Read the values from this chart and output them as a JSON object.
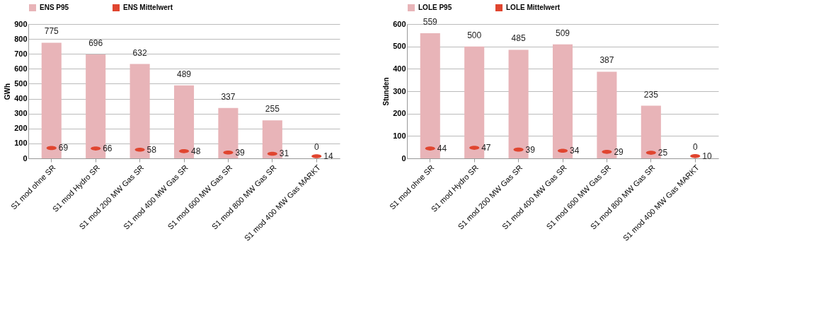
{
  "chart_data": [
    {
      "type": "bar",
      "categories": [
        "S1 mod ohne SR",
        "S1 mod Hydro SR",
        "S1 mod 200 MW Gas SR",
        "S1 mod 400 MW Gas SR",
        "S1 mod 600 MW Gas SR",
        "S1 mod 800 MW Gas SR",
        "S1 mod 400 MW Gas MARKT"
      ],
      "ylabel": "GWh",
      "ylim": [
        0,
        900
      ],
      "yticks": [
        0,
        100,
        200,
        300,
        400,
        500,
        600,
        700,
        800,
        900
      ],
      "grid": "y",
      "legend": "top",
      "data_labels": true,
      "series": [
        {
          "name": "ENS P95",
          "type": "bar",
          "color": "#e8b4b8",
          "values": [
            775,
            696,
            632,
            489,
            337,
            255,
            0
          ]
        },
        {
          "name": "ENS Mittelwert",
          "type": "scatter",
          "color": "#e0452f",
          "values": [
            69,
            66,
            58,
            48,
            39,
            31,
            14
          ]
        }
      ]
    },
    {
      "type": "bar",
      "categories": [
        "S1 mod ohne SR",
        "S1 mod Hydro SR",
        "S1 mod 200 MW Gas SR",
        "S1 mod 400 MW Gas SR",
        "S1 mod 600 MW Gas SR",
        "S1 mod 800 MW Gas SR",
        "S1 mod 400 MW Gas MARKT"
      ],
      "ylabel": "Stunden",
      "ylim": [
        0,
        600
      ],
      "yticks": [
        0,
        100,
        200,
        300,
        400,
        500,
        600
      ],
      "grid": "y",
      "legend": "top",
      "data_labels": true,
      "series": [
        {
          "name": "LOLE P95",
          "type": "bar",
          "color": "#e8b4b8",
          "values": [
            559,
            500,
            485,
            509,
            387,
            235,
            0
          ]
        },
        {
          "name": "LOLE Mittelwert",
          "type": "scatter",
          "color": "#e0452f",
          "values": [
            44,
            47,
            39,
            34,
            29,
            25,
            10
          ]
        }
      ]
    }
  ]
}
